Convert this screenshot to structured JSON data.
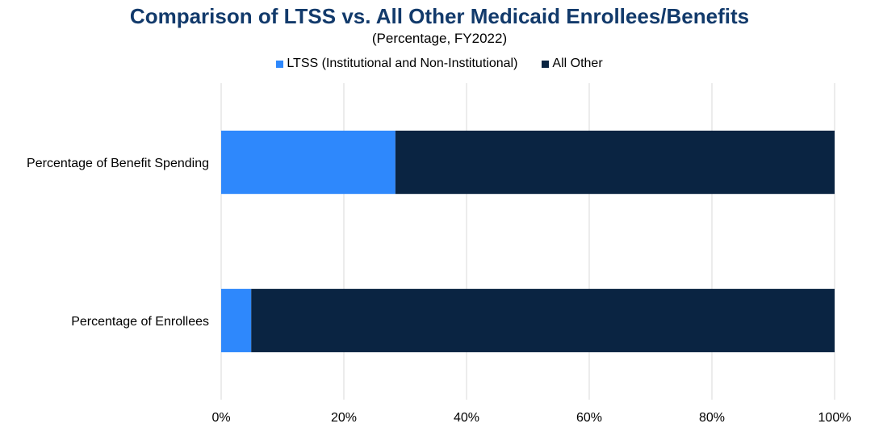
{
  "chart_data": {
    "type": "bar",
    "orientation": "horizontal",
    "stacked": true,
    "title": "Comparison of LTSS vs. All Other Medicaid Enrollees/Benefits",
    "subtitle": "(Percentage, FY2022)",
    "categories": [
      "Percentage of Benefit Spending",
      "Percentage of Enrollees"
    ],
    "series": [
      {
        "name": "LTSS (Institutional and Non-Institutional)",
        "color": "#2e88fc",
        "values": [
          28.4,
          4.9
        ]
      },
      {
        "name": "All Other",
        "color": "#0a2442",
        "values": [
          71.6,
          95.1
        ]
      }
    ],
    "xlim": [
      0,
      100
    ],
    "xticks": [
      "0%",
      "20%",
      "40%",
      "60%",
      "80%",
      "100%"
    ],
    "grid": true,
    "legend_position": "top",
    "title_color": "#123a6b"
  }
}
